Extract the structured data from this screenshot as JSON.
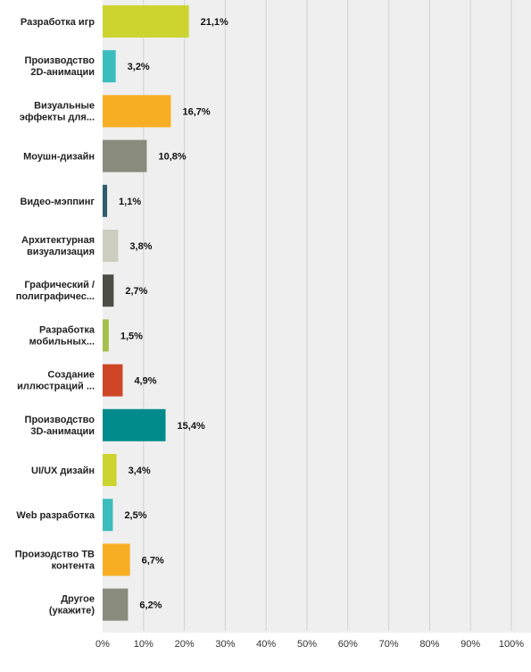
{
  "chart_data": {
    "type": "bar",
    "orientation": "horizontal",
    "categories": [
      [
        "Разработка игр"
      ],
      [
        "Производство",
        "2D-анимации"
      ],
      [
        "Визуальные",
        "эффекты для..."
      ],
      [
        "Моушн-дизайн"
      ],
      [
        "Видео-мэппинг"
      ],
      [
        "Архитектурная",
        "визуализация"
      ],
      [
        "Графический /",
        "полиграфичес..."
      ],
      [
        "Разработка",
        "мобильных..."
      ],
      [
        "Создание",
        "иллюстраций ..."
      ],
      [
        "Производство",
        "3D-анимации"
      ],
      [
        "UI/UX дизайн"
      ],
      [
        "Web разработка"
      ],
      [
        "Произодство ТВ",
        "контента"
      ],
      [
        "Другое",
        "(укажите)"
      ]
    ],
    "values": [
      21.1,
      3.2,
      16.7,
      10.8,
      1.1,
      3.8,
      2.7,
      1.5,
      4.9,
      15.4,
      3.4,
      2.5,
      6.7,
      6.2
    ],
    "value_labels": [
      "21,1%",
      "3,2%",
      "16,7%",
      "10,8%",
      "1,1%",
      "3,8%",
      "2,7%",
      "1,5%",
      "4,9%",
      "15,4%",
      "3,4%",
      "2,5%",
      "6,7%",
      "6,2%"
    ],
    "colors": [
      "#cdd42f",
      "#3bbdbe",
      "#f8ae23",
      "#898b7c",
      "#2e5e6d",
      "#cdcdc0",
      "#4c4d44",
      "#a6be4b",
      "#cf4626",
      "#028b8c",
      "#cdd42f",
      "#3bbdbe",
      "#f8ae23",
      "#898b7c"
    ],
    "xlim": [
      0,
      100
    ],
    "x_ticks": [
      "0%",
      "10%",
      "20%",
      "30%",
      "40%",
      "50%",
      "60%",
      "70%",
      "80%",
      "90%",
      "100%"
    ],
    "background_color": "#efefef",
    "grid": true,
    "title": "",
    "xlabel": "",
    "ylabel": ""
  }
}
